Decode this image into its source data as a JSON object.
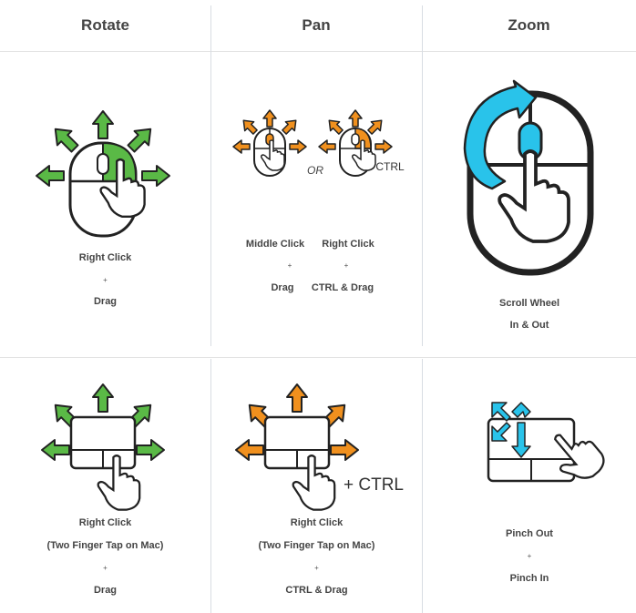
{
  "headers": {
    "rotate": "Rotate",
    "pan": "Pan",
    "zoom": "Zoom"
  },
  "colors": {
    "green": "#5ab946",
    "orange": "#f0901e",
    "cyan": "#29c3ea",
    "outline": "#222222"
  },
  "icons": {
    "rotate_mouse": "mouse-right-click-icon",
    "pan_mouse": "mouse-middle-click-icon",
    "zoom_mouse": "mouse-scroll-wheel-icon",
    "rotate_trackpad": "trackpad-two-finger-icon",
    "pan_trackpad": "trackpad-two-finger-icon",
    "zoom_trackpad": "trackpad-pinch-icon"
  },
  "mouse_row": {
    "rotate": {
      "line1": "Right Click",
      "plus": "+",
      "line2": "Drag"
    },
    "pan": {
      "or_label": "OR",
      "ctrl_label": "CTRL",
      "col1": {
        "line1": "Middle Click",
        "plus": "+",
        "line2": "Drag"
      },
      "col2": {
        "line1": "Right Click",
        "plus": "+",
        "line2": "CTRL & Drag"
      }
    },
    "zoom": {
      "line1": "Scroll Wheel",
      "line2": "In & Out"
    }
  },
  "trackpad_row": {
    "rotate": {
      "line1": "Right Click",
      "line2": "(Two Finger Tap on Mac)",
      "plus": "+",
      "line3": "Drag"
    },
    "pan": {
      "ctrl_label": "+ CTRL",
      "line1": "Right Click",
      "line2": "(Two Finger Tap on Mac)",
      "plus": "+",
      "line3": "CTRL & Drag"
    },
    "zoom": {
      "line1": "Pinch Out",
      "plus": "+",
      "line2": "Pinch In"
    }
  }
}
